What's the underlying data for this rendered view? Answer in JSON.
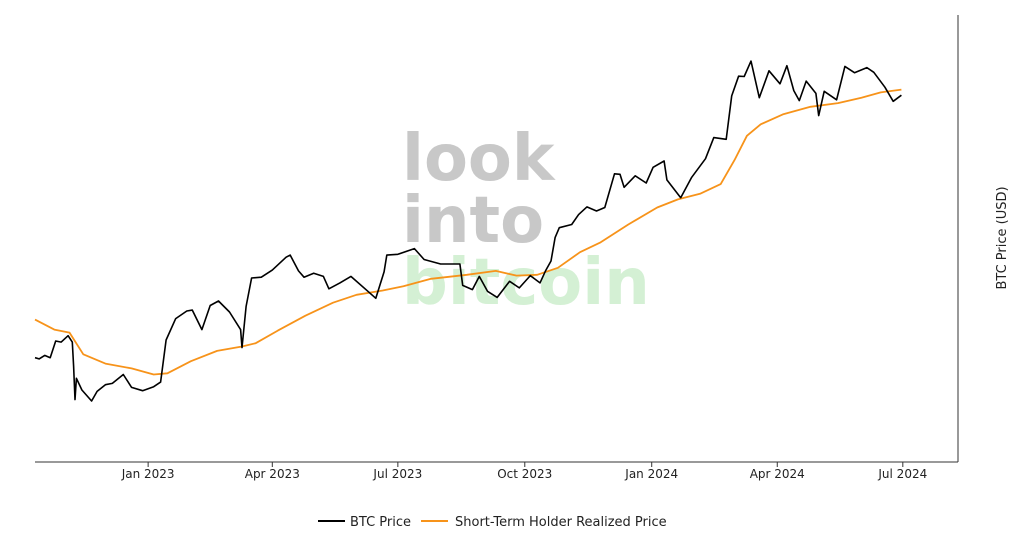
{
  "watermark": {
    "line1": "look",
    "line2": "into",
    "line3": "bitcoin",
    "gray_color": "#c8c8c8",
    "green_color": "#d4f0d4"
  },
  "chart_data": {
    "type": "line",
    "title": "",
    "xlabel": "",
    "ylabel": "BTC Price (USD)",
    "y_scale": "log",
    "y_tick_labels": "none",
    "grid": false,
    "legend_position": "bottom-center",
    "xlim": [
      "2022-10-11",
      "2024-08-10"
    ],
    "ylim": [
      12000,
      90000
    ],
    "x_ticks": [
      {
        "date": "2023-01-01",
        "label": "Jan 2023"
      },
      {
        "date": "2023-04-01",
        "label": "Apr 2023"
      },
      {
        "date": "2023-07-01",
        "label": "Jul 2023"
      },
      {
        "date": "2023-10-01",
        "label": "Oct 2023"
      },
      {
        "date": "2024-01-01",
        "label": "Jan 2024"
      },
      {
        "date": "2024-04-01",
        "label": "Apr 2024"
      },
      {
        "date": "2024-07-01",
        "label": "Jul 2024"
      }
    ],
    "series": [
      {
        "name": "BTC Price",
        "color": "#000000",
        "points": [
          [
            "2022-10-11",
            19200
          ],
          [
            "2022-10-14",
            19100
          ],
          [
            "2022-10-18",
            19400
          ],
          [
            "2022-10-22",
            19200
          ],
          [
            "2022-10-26",
            20700
          ],
          [
            "2022-10-30",
            20600
          ],
          [
            "2022-11-04",
            21200
          ],
          [
            "2022-11-07",
            20600
          ],
          [
            "2022-11-08",
            18500
          ],
          [
            "2022-11-09",
            15900
          ],
          [
            "2022-11-10",
            17500
          ],
          [
            "2022-11-14",
            16600
          ],
          [
            "2022-11-21",
            15800
          ],
          [
            "2022-11-25",
            16500
          ],
          [
            "2022-12-01",
            17000
          ],
          [
            "2022-12-06",
            17100
          ],
          [
            "2022-12-14",
            17800
          ],
          [
            "2022-12-20",
            16800
          ],
          [
            "2022-12-28",
            16550
          ],
          [
            "2023-01-05",
            16850
          ],
          [
            "2023-01-10",
            17200
          ],
          [
            "2023-01-14",
            20800
          ],
          [
            "2023-01-21",
            22900
          ],
          [
            "2023-01-29",
            23700
          ],
          [
            "2023-02-02",
            23800
          ],
          [
            "2023-02-09",
            21800
          ],
          [
            "2023-02-15",
            24300
          ],
          [
            "2023-02-21",
            24800
          ],
          [
            "2023-03-01",
            23600
          ],
          [
            "2023-03-09",
            21800
          ],
          [
            "2023-03-10",
            20100
          ],
          [
            "2023-03-13",
            24200
          ],
          [
            "2023-03-17",
            27500
          ],
          [
            "2023-03-24",
            27600
          ],
          [
            "2023-04-01",
            28500
          ],
          [
            "2023-04-11",
            30200
          ],
          [
            "2023-04-14",
            30500
          ],
          [
            "2023-04-20",
            28400
          ],
          [
            "2023-04-24",
            27600
          ],
          [
            "2023-05-01",
            28100
          ],
          [
            "2023-05-08",
            27700
          ],
          [
            "2023-05-12",
            26200
          ],
          [
            "2023-05-20",
            26900
          ],
          [
            "2023-05-28",
            27700
          ],
          [
            "2023-06-10",
            25800
          ],
          [
            "2023-06-15",
            25100
          ],
          [
            "2023-06-21",
            28300
          ],
          [
            "2023-06-23",
            30500
          ],
          [
            "2023-07-01",
            30600
          ],
          [
            "2023-07-13",
            31400
          ],
          [
            "2023-07-20",
            29900
          ],
          [
            "2023-08-01",
            29300
          ],
          [
            "2023-08-15",
            29300
          ],
          [
            "2023-08-17",
            26600
          ],
          [
            "2023-08-24",
            26100
          ],
          [
            "2023-08-29",
            27700
          ],
          [
            "2023-09-04",
            25900
          ],
          [
            "2023-09-11",
            25200
          ],
          [
            "2023-09-20",
            27100
          ],
          [
            "2023-09-27",
            26300
          ],
          [
            "2023-10-05",
            27800
          ],
          [
            "2023-10-12",
            26900
          ],
          [
            "2023-10-16",
            28400
          ],
          [
            "2023-10-20",
            29700
          ],
          [
            "2023-10-23",
            33000
          ],
          [
            "2023-10-26",
            34500
          ],
          [
            "2023-11-04",
            35000
          ],
          [
            "2023-11-09",
            36600
          ],
          [
            "2023-11-15",
            37900
          ],
          [
            "2023-11-22",
            37200
          ],
          [
            "2023-11-28",
            37800
          ],
          [
            "2023-12-05",
            44000
          ],
          [
            "2023-12-09",
            43900
          ],
          [
            "2023-12-12",
            41400
          ],
          [
            "2023-12-20",
            43600
          ],
          [
            "2023-12-28",
            42200
          ],
          [
            "2024-01-02",
            45300
          ],
          [
            "2024-01-10",
            46600
          ],
          [
            "2024-01-12",
            42800
          ],
          [
            "2024-01-22",
            39500
          ],
          [
            "2024-01-30",
            43300
          ],
          [
            "2024-02-09",
            47100
          ],
          [
            "2024-02-15",
            51800
          ],
          [
            "2024-02-24",
            51400
          ],
          [
            "2024-02-28",
            62500
          ],
          [
            "2024-03-04",
            68300
          ],
          [
            "2024-03-08",
            68200
          ],
          [
            "2024-03-13",
            73100
          ],
          [
            "2024-03-19",
            62000
          ],
          [
            "2024-03-26",
            70000
          ],
          [
            "2024-04-03",
            66000
          ],
          [
            "2024-04-08",
            71600
          ],
          [
            "2024-04-13",
            64000
          ],
          [
            "2024-04-17",
            61200
          ],
          [
            "2024-04-22",
            66800
          ],
          [
            "2024-04-29",
            63200
          ],
          [
            "2024-05-01",
            57200
          ],
          [
            "2024-05-05",
            63800
          ],
          [
            "2024-05-14",
            61400
          ],
          [
            "2024-05-20",
            71400
          ],
          [
            "2024-05-27",
            69400
          ],
          [
            "2024-06-05",
            71000
          ],
          [
            "2024-06-10",
            69500
          ],
          [
            "2024-06-18",
            65000
          ],
          [
            "2024-06-24",
            61000
          ],
          [
            "2024-06-30",
            62700
          ]
        ]
      },
      {
        "name": "Short-Term Holder Realized Price",
        "color": "#f7931a",
        "points": [
          [
            "2022-10-11",
            22800
          ],
          [
            "2022-10-25",
            21800
          ],
          [
            "2022-11-05",
            21500
          ],
          [
            "2022-11-15",
            19500
          ],
          [
            "2022-12-01",
            18700
          ],
          [
            "2022-12-20",
            18300
          ],
          [
            "2023-01-05",
            17800
          ],
          [
            "2023-01-15",
            17900
          ],
          [
            "2023-02-01",
            18900
          ],
          [
            "2023-02-20",
            19800
          ],
          [
            "2023-03-10",
            20200
          ],
          [
            "2023-03-20",
            20500
          ],
          [
            "2023-04-05",
            21700
          ],
          [
            "2023-04-25",
            23200
          ],
          [
            "2023-05-15",
            24600
          ],
          [
            "2023-06-01",
            25500
          ],
          [
            "2023-06-20",
            26000
          ],
          [
            "2023-07-05",
            26500
          ],
          [
            "2023-07-25",
            27400
          ],
          [
            "2023-08-20",
            27900
          ],
          [
            "2023-09-10",
            28400
          ],
          [
            "2023-09-25",
            27800
          ],
          [
            "2023-10-10",
            27900
          ],
          [
            "2023-10-25",
            28800
          ],
          [
            "2023-11-10",
            30900
          ],
          [
            "2023-11-25",
            32300
          ],
          [
            "2023-12-15",
            35000
          ],
          [
            "2024-01-05",
            37800
          ],
          [
            "2024-01-20",
            39200
          ],
          [
            "2024-02-05",
            40200
          ],
          [
            "2024-02-20",
            42000
          ],
          [
            "2024-03-01",
            46800
          ],
          [
            "2024-03-10",
            52200
          ],
          [
            "2024-03-20",
            55000
          ],
          [
            "2024-04-05",
            57500
          ],
          [
            "2024-04-25",
            59500
          ],
          [
            "2024-05-15",
            60500
          ],
          [
            "2024-06-01",
            62000
          ],
          [
            "2024-06-15",
            63500
          ],
          [
            "2024-06-30",
            64300
          ]
        ]
      }
    ]
  }
}
